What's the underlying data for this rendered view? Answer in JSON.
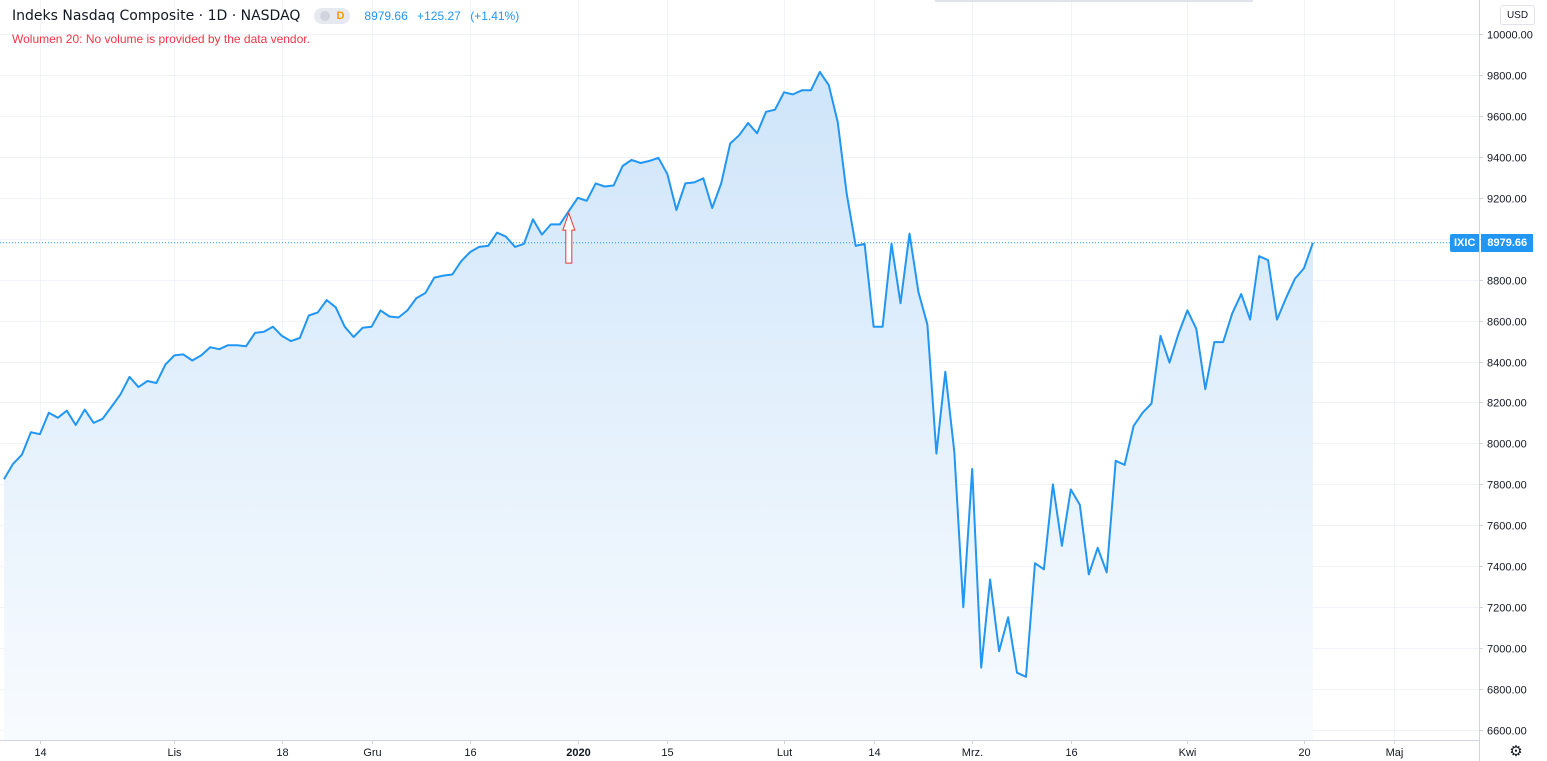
{
  "legend": {
    "title": "Indeks Nasdaq Composite · 1D · NASDAQ",
    "badge_letter": "D",
    "last": "8979.66",
    "change": "+125.27",
    "change_pct": "(+1.41%)"
  },
  "volume_message": "Wolumen 20: No volume is provided by the data vendor.",
  "currency": "USD",
  "last_label": {
    "ticker": "IXIC",
    "value": "8979.66"
  },
  "colors": {
    "line": "#2196f3",
    "fill_top": "#cfe5fa",
    "fill_bottom": "#f8fbfe",
    "grid": "#f0f3fa",
    "arrow": "#e53935",
    "axis_text": "#131722"
  },
  "icons": {
    "settings": "gear-icon"
  },
  "chart_data": {
    "type": "area",
    "ylim": [
      6600,
      10000
    ],
    "y_ticks": [
      "10000.00",
      "9800.00",
      "9600.00",
      "9400.00",
      "9200.00",
      "9000.00",
      "8800.00",
      "8600.00",
      "8400.00",
      "8200.00",
      "8000.00",
      "7800.00",
      "7600.00",
      "7400.00",
      "7200.00",
      "7000.00",
      "6800.00",
      "6600.00"
    ],
    "x_ticks": [
      {
        "label": "14",
        "index": 4,
        "bold": false
      },
      {
        "label": "Lis",
        "index": 19,
        "bold": false
      },
      {
        "label": "18",
        "index": 31,
        "bold": false
      },
      {
        "label": "Gru",
        "index": 41,
        "bold": false
      },
      {
        "label": "16",
        "index": 52,
        "bold": false
      },
      {
        "label": "2020",
        "index": 64,
        "bold": true
      },
      {
        "label": "15",
        "index": 74,
        "bold": false
      },
      {
        "label": "Lut",
        "index": 87,
        "bold": false
      },
      {
        "label": "14",
        "index": 97,
        "bold": false
      },
      {
        "label": "Mrz.",
        "index": 108,
        "bold": false
      },
      {
        "label": "16",
        "index": 119,
        "bold": false
      },
      {
        "label": "Kwi",
        "index": 132,
        "bold": false
      },
      {
        "label": "20",
        "index": 145,
        "bold": false
      },
      {
        "label": "Maj",
        "index": 155,
        "bold": false
      }
    ],
    "series": [
      {
        "values": [
          7825,
          7900,
          7945,
          8055,
          8045,
          8150,
          8125,
          8160,
          8090,
          8165,
          8100,
          8120,
          8180,
          8240,
          8325,
          8275,
          8305,
          8295,
          8385,
          8430,
          8435,
          8405,
          8430,
          8470,
          8460,
          8480,
          8480,
          8475,
          8540,
          8545,
          8570,
          8525,
          8500,
          8515,
          8625,
          8640,
          8700,
          8665,
          8570,
          8520,
          8565,
          8570,
          8650,
          8620,
          8615,
          8650,
          8710,
          8735,
          8810,
          8820,
          8825,
          8890,
          8935,
          8960,
          8965,
          9030,
          9010,
          8960,
          8975,
          9095,
          9020,
          9070,
          9070,
          9135,
          9200,
          9185,
          9270,
          9255,
          9260,
          9355,
          9385,
          9370,
          9380,
          9395,
          9315,
          9140,
          9270,
          9275,
          9295,
          9150,
          9270,
          9465,
          9505,
          9565,
          9515,
          9620,
          9630,
          9715,
          9705,
          9725,
          9725,
          9815,
          9750,
          9570,
          9220,
          8965,
          8975,
          8570,
          8570,
          8975,
          8685,
          9025,
          8740,
          8580,
          7950,
          8350,
          7960,
          7200,
          7875,
          6905,
          7335,
          6985,
          7150,
          6880,
          6860,
          7415,
          7385,
          7800,
          7500,
          7775,
          7700,
          7360,
          7490,
          7370,
          7915,
          7895,
          8085,
          8150,
          8195,
          8525,
          8395,
          8535,
          8650,
          8560,
          8265,
          8495,
          8495,
          8635,
          8730,
          8605,
          8915,
          8895,
          8605,
          8710,
          8805,
          8855,
          8980
        ]
      }
    ],
    "annotation": {
      "type": "arrow",
      "index": 63,
      "direction": "up"
    }
  }
}
